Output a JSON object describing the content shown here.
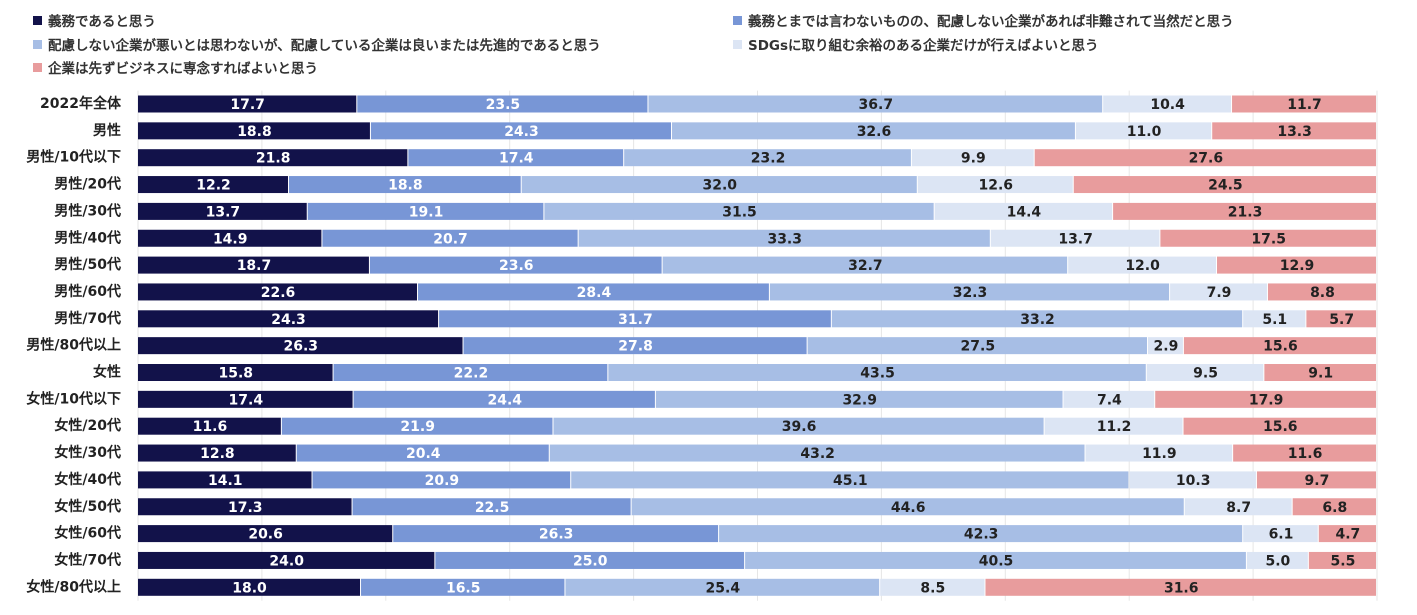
{
  "chart_data": {
    "type": "bar",
    "orientation": "horizontal",
    "stacked": true,
    "percent_stacked": true,
    "xlim": [
      0,
      100
    ],
    "grid": true,
    "legend_position": "top",
    "categories": [
      "2022年全体",
      "男性",
      "男性/10代以下",
      "男性/20代",
      "男性/30代",
      "男性/40代",
      "男性/50代",
      "男性/60代",
      "男性/70代",
      "男性/80代以上",
      "女性",
      "女性/10代以下",
      "女性/20代",
      "女性/30代",
      "女性/40代",
      "女性/50代",
      "女性/60代",
      "女性/70代",
      "女性/80代以上"
    ],
    "series": [
      {
        "name": "義務であると思う",
        "color": "#12124a",
        "label_color": "#ffffff",
        "values": [
          17.7,
          18.8,
          21.8,
          12.2,
          13.7,
          14.9,
          18.7,
          22.6,
          24.3,
          26.3,
          15.8,
          17.4,
          11.6,
          12.8,
          14.1,
          17.3,
          20.6,
          24.0,
          18.0
        ]
      },
      {
        "name": "義務とまでは言わないものの、配慮しない企業があれば非難されて当然だと思う",
        "color": "#7896d6",
        "label_color": "#ffffff",
        "values": [
          23.5,
          24.3,
          17.4,
          18.8,
          19.1,
          20.7,
          23.6,
          28.4,
          31.7,
          27.8,
          22.2,
          24.4,
          21.9,
          20.4,
          20.9,
          22.5,
          26.3,
          25.0,
          16.5
        ]
      },
      {
        "name": "配慮しない企業が悪いとは思わないが、配慮している企業は良いまたは先進的であると思う",
        "color": "#a7bee5",
        "label_color": "#222222",
        "values": [
          36.7,
          32.6,
          23.2,
          32.0,
          31.5,
          33.3,
          32.7,
          32.3,
          33.2,
          27.5,
          43.5,
          32.9,
          39.6,
          43.2,
          45.1,
          44.6,
          42.3,
          40.5,
          25.4
        ]
      },
      {
        "name": "SDGsに取り組む余裕のある企業だけが行えばよいと思う",
        "color": "#dce5f4",
        "label_color": "#222222",
        "values": [
          10.4,
          11.0,
          9.9,
          12.6,
          14.4,
          13.7,
          12.0,
          7.9,
          5.1,
          2.9,
          9.5,
          7.4,
          11.2,
          11.9,
          10.3,
          8.7,
          6.1,
          5.0,
          8.5
        ]
      },
      {
        "name": "企業は先ずビジネスに専念すればよいと思う",
        "color": "#e89c9d",
        "label_color": "#222222",
        "values": [
          11.7,
          13.3,
          27.6,
          24.5,
          21.3,
          17.5,
          12.9,
          8.8,
          5.7,
          15.6,
          9.1,
          17.9,
          15.6,
          11.6,
          9.7,
          6.8,
          4.7,
          5.5,
          31.6
        ]
      }
    ]
  }
}
